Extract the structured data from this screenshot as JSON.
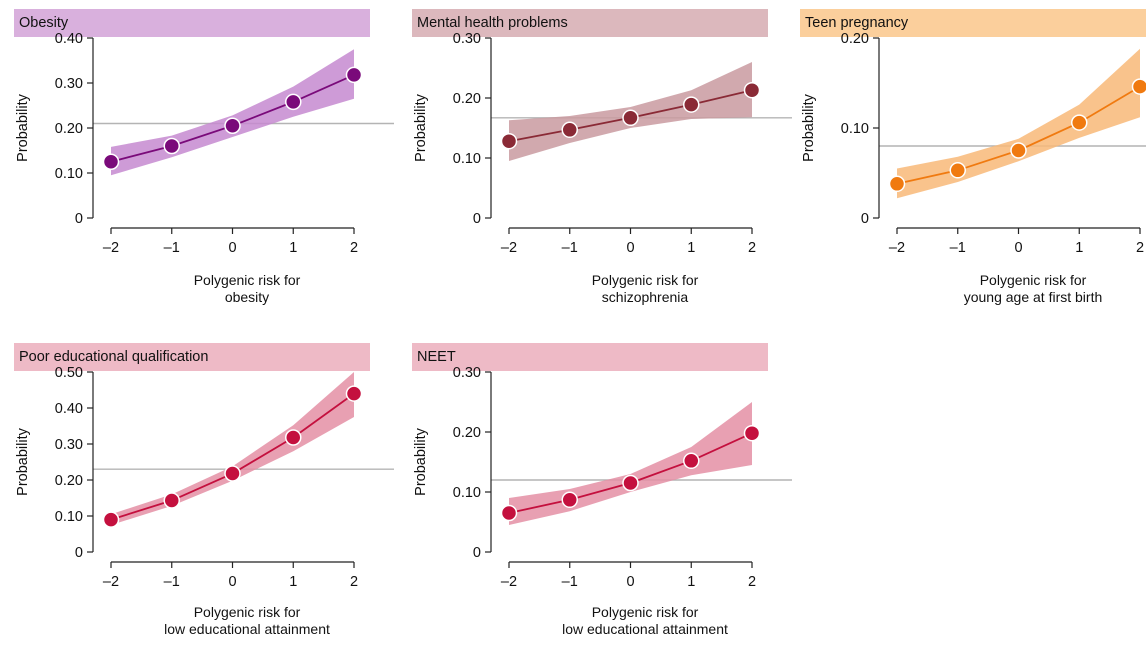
{
  "charts": [
    {
      "id": "obesity",
      "type": "line",
      "title": "Obesity",
      "header_color": "#d9b0dd",
      "line_color": "#7a0a7a",
      "band_color": "#c58ad0",
      "ylabel": "Probability",
      "xlabel_lines": [
        "Polygenic risk for",
        "obesity"
      ],
      "x": [
        -2,
        -1,
        0,
        1,
        2
      ],
      "x_tick_labels": [
        "–2",
        "–1",
        "0",
        "1",
        "2"
      ],
      "y": [
        0.125,
        0.16,
        0.205,
        0.258,
        0.318
      ],
      "ci_lower": [
        0.095,
        0.135,
        0.18,
        0.225,
        0.265
      ],
      "ci_upper": [
        0.158,
        0.183,
        0.228,
        0.292,
        0.375
      ],
      "ylim": [
        0,
        0.4
      ],
      "y_ticks": [
        0,
        0.1,
        0.2,
        0.3,
        0.4
      ],
      "y_tick_labels": [
        "0",
        "0.10",
        "0.20",
        "0.30",
        "0.40"
      ],
      "reference_line": 0.21
    },
    {
      "id": "mental",
      "type": "line",
      "title": "Mental health problems",
      "header_color": "#dcb8bd",
      "line_color": "#8a2a36",
      "band_color": "#c99aa0",
      "ylabel": "Probability",
      "xlabel_lines": [
        "Polygenic risk for",
        "schizophrenia"
      ],
      "x": [
        -2,
        -1,
        0,
        1,
        2
      ],
      "x_tick_labels": [
        "–2",
        "–1",
        "0",
        "1",
        "2"
      ],
      "y": [
        0.128,
        0.147,
        0.167,
        0.189,
        0.213
      ],
      "ci_lower": [
        0.095,
        0.125,
        0.15,
        0.165,
        0.168
      ],
      "ci_upper": [
        0.163,
        0.17,
        0.185,
        0.213,
        0.26
      ],
      "ylim": [
        0,
        0.3
      ],
      "y_ticks": [
        0,
        0.1,
        0.2,
        0.3
      ],
      "y_tick_labels": [
        "0",
        "0.10",
        "0.20",
        "0.30"
      ],
      "reference_line": 0.167
    },
    {
      "id": "teen",
      "type": "line",
      "title": "Teen pregnancy",
      "header_color": "#fbcf9c",
      "line_color": "#f07a10",
      "band_color": "#f8b878",
      "ylabel": "Probability",
      "xlabel_lines": [
        "Polygenic risk for",
        "young age at first birth"
      ],
      "x": [
        -2,
        -1,
        0,
        1,
        2
      ],
      "x_tick_labels": [
        "–2",
        "–1",
        "0",
        "1",
        "2"
      ],
      "y": [
        0.038,
        0.053,
        0.075,
        0.106,
        0.146
      ],
      "ci_lower": [
        0.022,
        0.04,
        0.063,
        0.089,
        0.112
      ],
      "ci_upper": [
        0.055,
        0.068,
        0.088,
        0.126,
        0.188
      ],
      "ylim": [
        0,
        0.2
      ],
      "y_ticks": [
        0,
        0.1,
        0.2
      ],
      "y_tick_labels": [
        "0",
        "0.10",
        "0.20"
      ],
      "reference_line": 0.08
    },
    {
      "id": "educ",
      "type": "line",
      "title": "Poor educational qualification",
      "header_color": "#eebac6",
      "line_color": "#c4103e",
      "band_color": "#e48fa4",
      "ylabel": "Probability",
      "xlabel_lines": [
        "Polygenic risk for",
        "low educational attainment"
      ],
      "x": [
        -2,
        -1,
        0,
        1,
        2
      ],
      "x_tick_labels": [
        "–2",
        "–1",
        "0",
        "1",
        "2"
      ],
      "y": [
        0.09,
        0.143,
        0.218,
        0.318,
        0.44
      ],
      "ci_lower": [
        0.075,
        0.128,
        0.198,
        0.28,
        0.375
      ],
      "ci_upper": [
        0.105,
        0.16,
        0.238,
        0.352,
        0.5
      ],
      "ylim": [
        0,
        0.5
      ],
      "y_ticks": [
        0,
        0.1,
        0.2,
        0.3,
        0.4,
        0.5
      ],
      "y_tick_labels": [
        "0",
        "0.10",
        "0.20",
        "0.30",
        "0.40",
        "0.50"
      ],
      "reference_line": 0.23
    },
    {
      "id": "neet",
      "type": "line",
      "title": "NEET",
      "header_color": "#eebac6",
      "line_color": "#c4103e",
      "band_color": "#e48fa4",
      "ylabel": "Probability",
      "xlabel_lines": [
        "Polygenic risk for",
        "low educational attainment"
      ],
      "x": [
        -2,
        -1,
        0,
        1,
        2
      ],
      "x_tick_labels": [
        "–2",
        "–1",
        "0",
        "1",
        "2"
      ],
      "y": [
        0.065,
        0.087,
        0.115,
        0.152,
        0.198
      ],
      "ci_lower": [
        0.045,
        0.068,
        0.1,
        0.128,
        0.145
      ],
      "ci_upper": [
        0.09,
        0.105,
        0.13,
        0.175,
        0.25
      ],
      "ylim": [
        0,
        0.3
      ],
      "y_ticks": [
        0,
        0.1,
        0.2,
        0.3
      ],
      "y_tick_labels": [
        "0",
        "0.10",
        "0.20",
        "0.30"
      ],
      "reference_line": 0.12
    }
  ]
}
